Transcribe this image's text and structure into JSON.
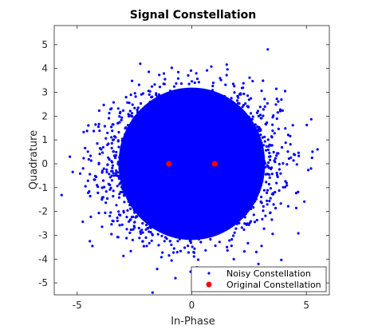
{
  "chart_data": {
    "type": "scatter",
    "title": "Signal Constellation",
    "xlabel": "In-Phase",
    "ylabel": "Quadrature",
    "xlim": [
      -6,
      6
    ],
    "ylim": [
      -5.5,
      5.8
    ],
    "xticks": [
      -5,
      0,
      5
    ],
    "yticks": [
      -5,
      -4,
      -3,
      -2,
      -1,
      0,
      1,
      2,
      3,
      4,
      5
    ],
    "grid": false,
    "legend_position": "bottom-right",
    "series": [
      {
        "name": "Noisy Constellation",
        "color": "#0000ff",
        "marker": "dot",
        "distribution": {
          "centers": [
            [
              -1,
              0
            ],
            [
              1,
              0
            ]
          ],
          "approx_spread": 1.4,
          "approx_extent": [
            -5.5,
            5.2
          ]
        }
      },
      {
        "name": "Original Constellation",
        "color": "#ff0000",
        "marker": "filled-circle",
        "points": [
          [
            -1,
            0
          ],
          [
            1,
            0
          ]
        ]
      }
    ]
  }
}
